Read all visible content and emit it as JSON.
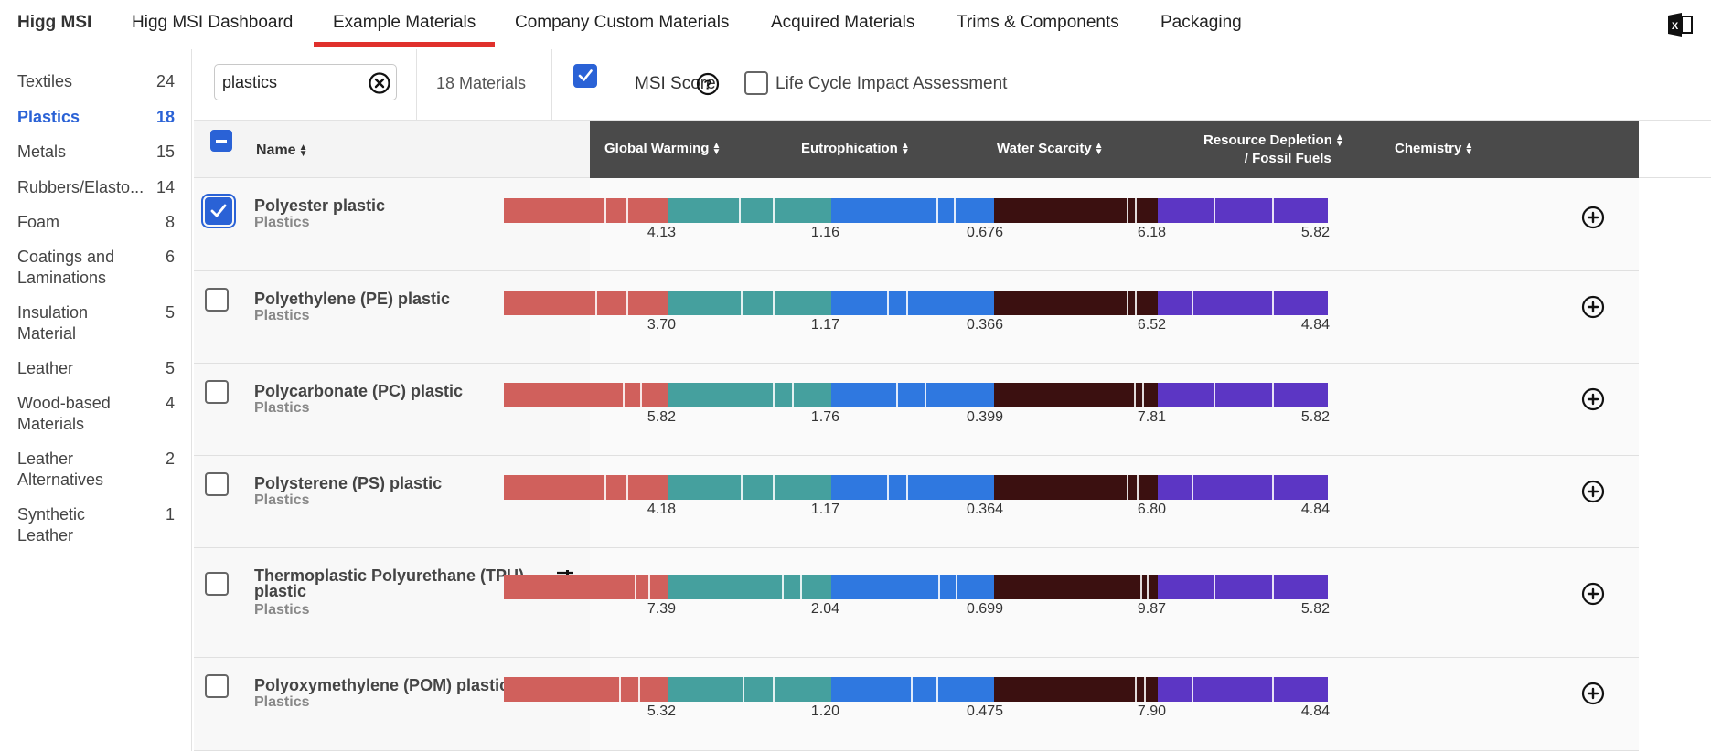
{
  "nav": {
    "brand": "Higg MSI",
    "tabs": [
      {
        "label": "Higg MSI Dashboard"
      },
      {
        "label": "Example Materials"
      },
      {
        "label": "Company Custom Materials"
      },
      {
        "label": "Acquired Materials"
      },
      {
        "label": "Trims & Components"
      },
      {
        "label": "Packaging"
      }
    ],
    "active_tab": "Example Materials",
    "export_icon": "excel-icon"
  },
  "sidebar": {
    "categories": [
      {
        "label": "Textiles",
        "count": "24"
      },
      {
        "label": "Plastics",
        "count": "18",
        "active": true
      },
      {
        "label": "Metals",
        "count": "15"
      },
      {
        "label": "Rubbers/Elasto...",
        "count": "14"
      },
      {
        "label": "Foam",
        "count": "8"
      },
      {
        "label": "Coatings and Laminations",
        "count": "6"
      },
      {
        "label": "Insulation Material",
        "count": "5"
      },
      {
        "label": "Leather",
        "count": "5"
      },
      {
        "label": "Wood-based Materials",
        "count": "4"
      },
      {
        "label": "Leather Alternatives",
        "count": "2"
      },
      {
        "label": "Synthetic Leather",
        "count": "1"
      }
    ]
  },
  "filters": {
    "search_value": "plastics",
    "material_count": "18 Materials",
    "msi_score_label": "MSI Score",
    "msi_score_checked": true,
    "lca_label": "Life Cycle Impact Assessment",
    "lca_checked": false
  },
  "table": {
    "name_header": "Name",
    "columns": [
      {
        "label": "Global Warming",
        "color": "#d0605c"
      },
      {
        "label": "Eutrophication",
        "color": "#45a09e"
      },
      {
        "label": "Water Scarcity",
        "color": "#2f78e0"
      },
      {
        "label_line1": "Resource Depletion",
        "label_line2": "/ Fossil Fuels",
        "color": "#3b1010"
      },
      {
        "label": "Chemistry",
        "color": "#5c36c4"
      }
    ],
    "rows": [
      {
        "name": "Polyester plastic",
        "category": "Plastics",
        "checked": true,
        "values": [
          "4.13",
          "1.16",
          "0.676",
          "6.18",
          "5.82"
        ]
      },
      {
        "name": "Polyethylene (PE) plastic",
        "category": "Plastics",
        "checked": false,
        "values": [
          "3.70",
          "1.17",
          "0.366",
          "6.52",
          "4.84"
        ]
      },
      {
        "name": "Polycarbonate (PC) plastic",
        "category": "Plastics",
        "checked": false,
        "values": [
          "5.82",
          "1.76",
          "0.399",
          "7.81",
          "5.82"
        ]
      },
      {
        "name": "Polysterene (PS) plastic",
        "category": "Plastics",
        "checked": false,
        "values": [
          "4.18",
          "1.17",
          "0.364",
          "6.80",
          "4.84"
        ]
      },
      {
        "name": "Thermoplastic Polyurethane (TPU) plastic",
        "category": "Plastics",
        "checked": false,
        "values": [
          "7.39",
          "2.04",
          "0.699",
          "9.87",
          "5.82"
        ]
      },
      {
        "name": "Polyoxymethylene (POM) plastic",
        "category": "Plastics",
        "checked": false,
        "values": [
          "5.32",
          "1.20",
          "0.475",
          "7.90",
          "4.84"
        ]
      }
    ]
  }
}
